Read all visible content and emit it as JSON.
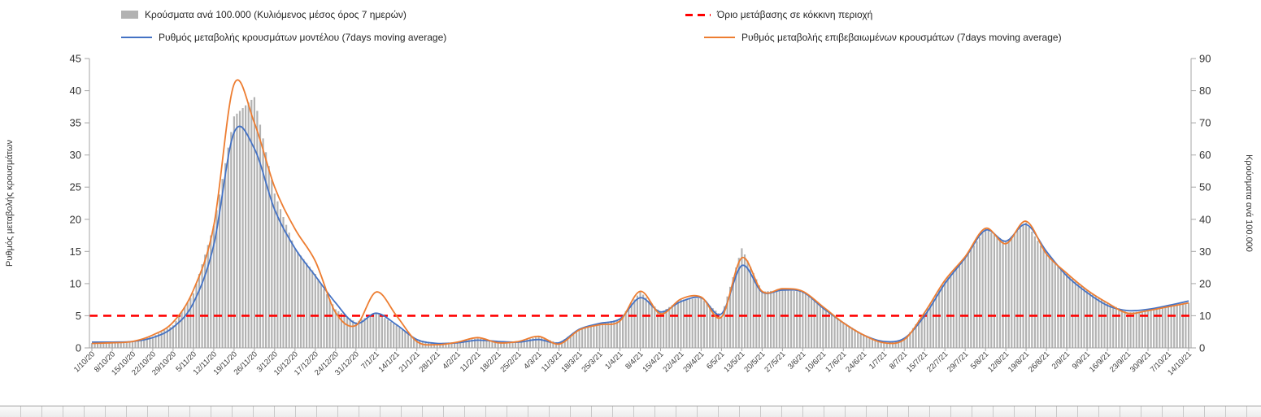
{
  "axes": {
    "left_title": "Ρυθμός μεταβολής κρουσμάτων",
    "right_title": "Κρούσματα ανά 100.000",
    "left_ticks": [
      0,
      5,
      10,
      15,
      20,
      25,
      30,
      35,
      40,
      45
    ],
    "right_ticks": [
      0,
      10,
      20,
      30,
      40,
      50,
      60,
      70,
      80,
      90
    ],
    "left_range": [
      0,
      45
    ],
    "right_range": [
      0,
      90
    ]
  },
  "chart_data": {
    "type": "combo",
    "title": "",
    "xlabel": "",
    "ylabel_left": "Ρυθμός μεταβολής κρουσμάτων",
    "ylabel_right": "Κρούσματα ανά 100.000",
    "ylim_left": [
      0,
      45
    ],
    "ylim_right": [
      0,
      90
    ],
    "legend_position": "top",
    "grid": false,
    "x_tick_rotation": -45,
    "categories": [
      "1/10/20",
      "8/10/20",
      "15/10/20",
      "22/10/20",
      "29/10/20",
      "5/11/20",
      "12/11/20",
      "19/11/20",
      "26/11/20",
      "3/12/20",
      "10/12/20",
      "17/12/20",
      "24/12/20",
      "31/12/20",
      "7/1/21",
      "14/1/21",
      "21/1/21",
      "28/1/21",
      "4/2/21",
      "11/2/21",
      "18/2/21",
      "25/2/21",
      "4/3/21",
      "11/3/21",
      "18/3/21",
      "25/3/21",
      "1/4/21",
      "8/4/21",
      "15/4/21",
      "22/4/21",
      "29/4/21",
      "6/5/21",
      "13/5/21",
      "20/5/21",
      "27/5/21",
      "3/6/21",
      "10/6/21",
      "17/6/21",
      "24/6/21",
      "1/7/21",
      "8/7/21",
      "15/7/21",
      "22/7/21",
      "29/7/21",
      "5/8/21",
      "12/8/21",
      "19/8/21",
      "26/8/21",
      "2/9/21",
      "9/9/21",
      "16/9/21",
      "23/9/21",
      "30/9/21",
      "7/10/21",
      "14/10/21"
    ],
    "series": [
      {
        "name": "Κρούσματα ανά 100.000 (Κυλιόμενος μέσος όρος 7 ημερών)",
        "type": "bar",
        "axis": "right",
        "color": "#b2b2b2",
        "values": [
          1.5,
          1.6,
          2,
          3.5,
          7,
          17,
          38,
          72,
          78,
          48,
          31,
          23,
          12,
          8,
          11,
          7,
          2.5,
          1.5,
          1.8,
          3,
          2,
          2,
          3.5,
          1.5,
          6,
          7.5,
          9,
          17.5,
          11,
          15,
          15.5,
          10,
          31,
          17.5,
          18,
          17.5,
          12.5,
          8,
          4,
          1.5,
          2.5,
          11,
          21,
          28,
          37,
          33,
          39,
          29,
          23,
          18,
          14,
          11,
          11.5,
          13,
          14
        ]
      },
      {
        "name": "Ρυθμός μεταβολής κρουσμάτων μοντέλου (7days moving average)",
        "type": "line",
        "axis": "left",
        "color": "#4472c4",
        "values": [
          0.9,
          0.9,
          1,
          1.6,
          3.2,
          7,
          16,
          33.5,
          31,
          21.5,
          15.5,
          11.2,
          7,
          3.8,
          5.4,
          3.6,
          1.3,
          0.7,
          0.8,
          1.2,
          1,
          0.9,
          1.3,
          0.8,
          2.9,
          3.8,
          4.5,
          7.8,
          5.6,
          7.2,
          7.8,
          5.3,
          12.8,
          8.7,
          9,
          8.7,
          6.2,
          3.9,
          2,
          1,
          1.5,
          5,
          10,
          14,
          18.3,
          16.6,
          19.2,
          15,
          11.2,
          8.6,
          6.6,
          5.8,
          6,
          6.6,
          7.3
        ]
      },
      {
        "name": "Ρυθμός μεταβολής επιβεβαιωμένων κρουσμάτων (7days moving average)",
        "type": "line",
        "axis": "left",
        "color": "#ed7d31",
        "values": [
          0.7,
          0.8,
          1,
          2,
          4,
          9,
          19,
          41,
          35,
          25,
          18.5,
          13.5,
          5.5,
          3.5,
          8.7,
          5,
          1,
          0.5,
          0.9,
          1.6,
          0.8,
          1,
          1.8,
          0.6,
          2.8,
          3.6,
          4.2,
          8.8,
          5.3,
          7.6,
          7.9,
          4.8,
          14,
          8.8,
          9.2,
          8.8,
          6.4,
          3.9,
          2,
          0.8,
          1.3,
          5.5,
          10.5,
          14.2,
          18.6,
          16.2,
          19.7,
          14.6,
          11.6,
          9,
          7,
          5.4,
          5.8,
          6.4,
          7
        ]
      },
      {
        "name": "Όριο μετάβασης σε κόκκινη περιοχή",
        "type": "threshold",
        "axis": "left",
        "color": "#ff0000",
        "value": 5
      }
    ]
  }
}
